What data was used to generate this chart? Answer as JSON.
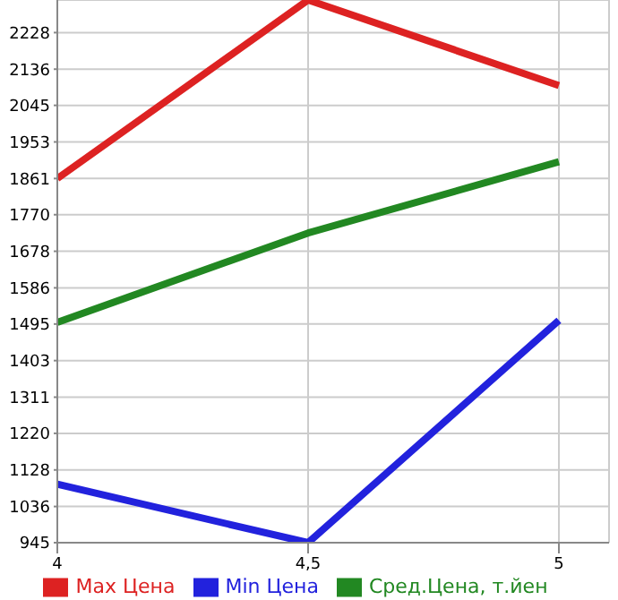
{
  "chart_data": {
    "type": "line",
    "x": [
      4,
      4.5,
      5
    ],
    "series": [
      {
        "name": "Max Цена",
        "color": "#dd2222",
        "values": [
          1861,
          2310,
          2095
        ]
      },
      {
        "name": "Min Цена",
        "color": "#2222dd",
        "values": [
          1092,
          945,
          1504
        ]
      },
      {
        "name": "Сред.Цена, т.йен",
        "color": "#228822",
        "values": [
          1499,
          1724,
          1903
        ]
      }
    ],
    "xlim": [
      4,
      5.1
    ],
    "xticks": [
      4,
      {
        "value": 4.5,
        "label": "4,5"
      },
      5
    ],
    "ylim": [
      945,
      2310
    ],
    "yticks": [
      945,
      1036,
      1128,
      1220,
      1311,
      1403,
      1495,
      1586,
      1678,
      1770,
      1861,
      1953,
      2045,
      2136,
      2228
    ],
    "grid": true,
    "legend": "bottom",
    "marker": "none",
    "line_style": "solid"
  }
}
